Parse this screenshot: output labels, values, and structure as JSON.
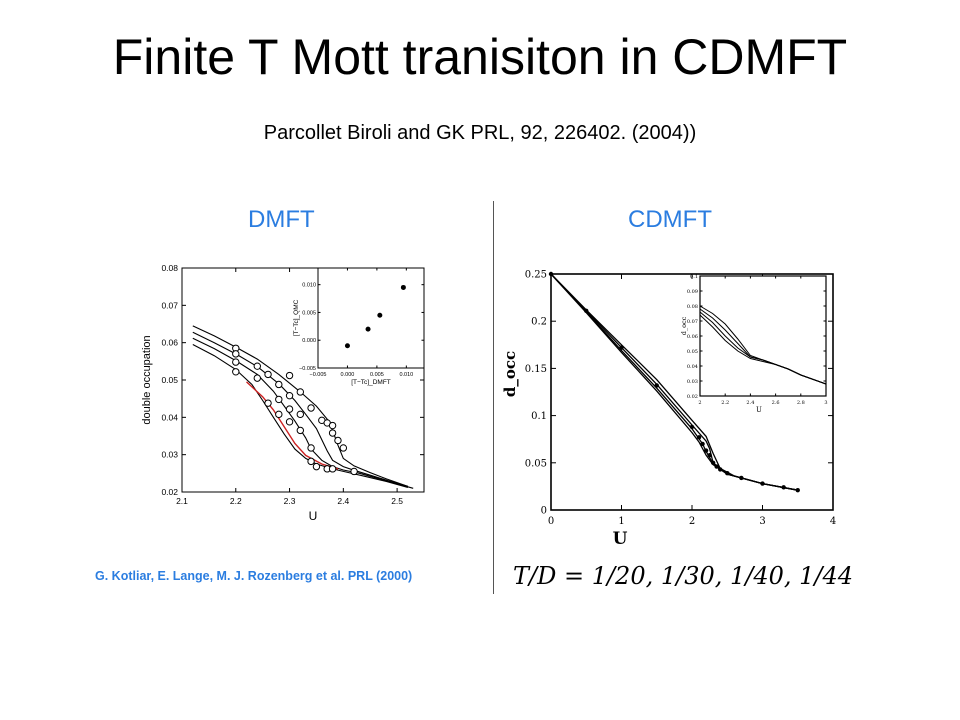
{
  "slide": {
    "title": "Finite T Mott tranisiton in CDMFT",
    "subtitle": "Parcollet Biroli and GK PRL,  92,  226402. (2004))",
    "dmft_label": "DMFT",
    "cdmft_label": "CDMFT",
    "credit": "G. Kotliar, E. Lange, M. J. Rozenberg et al. PRL (2000)",
    "formula": "T/D = 1/20, 1/30, 1/40, 1/44",
    "colors": {
      "accent": "#2b7de0",
      "fit_line": "#cc2222",
      "ink": "#000000"
    }
  },
  "chart_data": [
    {
      "type": "line",
      "xlabel": "U",
      "ylabel": "double occupation",
      "xlim": [
        2.1,
        2.55
      ],
      "ylim": [
        0.02,
        0.08
      ],
      "xticks": [
        2.1,
        2.2,
        2.3,
        2.4,
        2.5
      ],
      "xtick_labels": [
        "2.1",
        "2.2",
        "2.3",
        "2.4",
        "2.5"
      ],
      "yticks": [
        0.02,
        0.03,
        0.04,
        0.05,
        0.06,
        0.07,
        0.08
      ],
      "ytick_labels": [
        "0.02",
        "0.03",
        "0.04",
        "0.05",
        "0.06",
        "0.07",
        "0.08"
      ],
      "series": [
        {
          "x": [
            2.12,
            2.16,
            2.2,
            2.24,
            2.28,
            2.32,
            2.35,
            2.37,
            2.38,
            2.39,
            2.4,
            2.42,
            2.45,
            2.48,
            2.52
          ],
          "y": [
            0.0645,
            0.0618,
            0.0588,
            0.0556,
            0.0515,
            0.0468,
            0.043,
            0.0395,
            0.0365,
            0.0325,
            0.029,
            0.027,
            0.0252,
            0.0235,
            0.0215
          ]
        },
        {
          "x": [
            2.12,
            2.16,
            2.2,
            2.24,
            2.28,
            2.31,
            2.33,
            2.35,
            2.36,
            2.37,
            2.38,
            2.4,
            2.42,
            2.45,
            2.48,
            2.52
          ],
          "y": [
            0.0628,
            0.06,
            0.057,
            0.0536,
            0.049,
            0.0445,
            0.0408,
            0.037,
            0.034,
            0.031,
            0.0285,
            0.0268,
            0.0258,
            0.0245,
            0.0232,
            0.0215
          ]
        },
        {
          "x": [
            2.12,
            2.16,
            2.2,
            2.24,
            2.27,
            2.29,
            2.31,
            2.33,
            2.34,
            2.36,
            2.38,
            2.4,
            2.43,
            2.46,
            2.5,
            2.53
          ],
          "y": [
            0.0612,
            0.0584,
            0.0552,
            0.0515,
            0.047,
            0.043,
            0.039,
            0.0345,
            0.0315,
            0.0285,
            0.0268,
            0.0259,
            0.025,
            0.0238,
            0.0222,
            0.021
          ]
        },
        {
          "x": [
            2.12,
            2.16,
            2.2,
            2.23,
            2.25,
            2.27,
            2.29,
            2.31,
            2.33,
            2.35,
            2.38,
            2.41,
            2.44,
            2.48,
            2.52
          ],
          "y": [
            0.0595,
            0.0565,
            0.0528,
            0.0488,
            0.0445,
            0.04,
            0.0355,
            0.0315,
            0.029,
            0.0275,
            0.0262,
            0.0252,
            0.0242,
            0.0228,
            0.0212
          ]
        },
        {
          "name": "fit",
          "color": "#cc2222",
          "x": [
            2.22,
            2.25,
            2.27,
            2.29,
            2.31,
            2.33,
            2.36,
            2.39
          ],
          "y": [
            0.0495,
            0.0455,
            0.042,
            0.0375,
            0.033,
            0.0298,
            0.0275,
            0.0262
          ]
        }
      ],
      "points": {
        "x": [
          2.2,
          2.2,
          2.2,
          2.2,
          2.24,
          2.24,
          2.26,
          2.26,
          2.28,
          2.28,
          2.28,
          2.3,
          2.3,
          2.3,
          2.3,
          2.32,
          2.32,
          2.32,
          2.34,
          2.34,
          2.34,
          2.35,
          2.36,
          2.37,
          2.37,
          2.38,
          2.38,
          2.38,
          2.39,
          2.4,
          2.42
        ],
        "y": [
          0.0585,
          0.057,
          0.0548,
          0.0522,
          0.0537,
          0.0505,
          0.0515,
          0.0438,
          0.0488,
          0.0448,
          0.0408,
          0.0512,
          0.0458,
          0.0422,
          0.0388,
          0.0468,
          0.0408,
          0.0365,
          0.0425,
          0.0318,
          0.0282,
          0.0268,
          0.0392,
          0.0385,
          0.0262,
          0.0378,
          0.0358,
          0.0262,
          0.0338,
          0.0318,
          0.0255
        ]
      },
      "inset": {
        "type": "scatter",
        "xlabel": "[T−Tc]_DMFT",
        "ylabel": "[T−Tc]_QMC",
        "xlim": [
          -0.005,
          0.013
        ],
        "ylim": [
          -0.005,
          0.013
        ],
        "xticks": [
          -0.005,
          0.0,
          0.005,
          0.01
        ],
        "xtick_labels": [
          "−0.005",
          "0.000",
          "0.005",
          "0.010"
        ],
        "yticks": [
          -0.005,
          0.0,
          0.005,
          0.01
        ],
        "ytick_labels": [
          "−0.005",
          "0.000",
          "0.005",
          "0.010"
        ],
        "x": [
          0.0,
          0.0035,
          0.0055,
          0.0095
        ],
        "y": [
          -0.001,
          0.002,
          0.0045,
          0.0095
        ]
      }
    },
    {
      "type": "line",
      "xlabel": "U",
      "ylabel": "d_occ",
      "xlim": [
        0,
        4
      ],
      "ylim": [
        0,
        0.25
      ],
      "xticks": [
        0,
        1,
        2,
        3,
        4
      ],
      "xtick_labels": [
        "0",
        "1",
        "2",
        "3",
        "4"
      ],
      "yticks": [
        0,
        0.05,
        0.1,
        0.15,
        0.2,
        0.25
      ],
      "ytick_labels": [
        "0",
        "0.05",
        "0.1",
        "0.15",
        "0.2",
        "0.25"
      ],
      "series": [
        {
          "x": [
            0,
            0.5,
            1,
            1.5,
            2,
            2.2,
            2.3,
            2.4,
            2.6,
            3.0,
            3.5
          ],
          "y": [
            0.25,
            0.212,
            0.175,
            0.138,
            0.095,
            0.078,
            0.06,
            0.044,
            0.036,
            0.028,
            0.021
          ]
        },
        {
          "x": [
            0,
            0.5,
            1,
            1.5,
            2,
            2.2,
            2.25,
            2.3,
            2.5,
            3.0,
            3.5
          ],
          "y": [
            0.25,
            0.211,
            0.172,
            0.133,
            0.09,
            0.073,
            0.065,
            0.05,
            0.038,
            0.028,
            0.021
          ]
        },
        {
          "x": [
            0,
            0.5,
            1,
            1.5,
            2,
            2.15,
            2.2,
            2.3,
            2.5,
            3.0,
            3.5
          ],
          "y": [
            0.25,
            0.21,
            0.169,
            0.129,
            0.086,
            0.07,
            0.062,
            0.049,
            0.038,
            0.028,
            0.021
          ]
        },
        {
          "x": [
            0,
            0.5,
            1,
            1.5,
            2,
            2.1,
            2.2,
            2.3,
            2.5,
            3.0,
            3.5
          ],
          "y": [
            0.25,
            0.209,
            0.167,
            0.126,
            0.082,
            0.072,
            0.058,
            0.048,
            0.038,
            0.028,
            0.021
          ]
        }
      ],
      "points": {
        "x": [
          0,
          0.5,
          1.0,
          1.5,
          2.0,
          2.1,
          2.15,
          2.2,
          2.25,
          2.3,
          2.35,
          2.4,
          2.5,
          2.7,
          3.0,
          3.3,
          3.5
        ],
        "y": [
          0.25,
          0.211,
          0.172,
          0.132,
          0.088,
          0.077,
          0.07,
          0.063,
          0.058,
          0.05,
          0.046,
          0.043,
          0.039,
          0.034,
          0.028,
          0.024,
          0.021
        ]
      },
      "inset": {
        "type": "line",
        "xlabel": "U",
        "ylabel": "d_occ",
        "xlim": [
          2.0,
          3.0
        ],
        "ylim": [
          0.02,
          0.1
        ],
        "xticks": [
          2.0,
          2.2,
          2.4,
          2.6,
          2.8,
          3.0
        ],
        "xtick_labels": [
          "2",
          "2.2",
          "2.4",
          "2.6",
          "2.8",
          "3"
        ],
        "yticks": [
          0.02,
          0.03,
          0.04,
          0.05,
          0.06,
          0.07,
          0.08,
          0.09,
          0.1
        ],
        "ytick_labels": [
          "0.02",
          "0.03",
          "0.04",
          "0.05",
          "0.06",
          "0.07",
          "0.08",
          "0.09",
          "0.1"
        ],
        "series": [
          {
            "x": [
              2.0,
              2.1,
              2.2,
              2.3,
              2.4,
              2.5,
              2.6,
              2.7,
              2.8,
              2.9,
              3.0
            ],
            "y": [
              0.08,
              0.075,
              0.068,
              0.058,
              0.047,
              0.044,
              0.041,
              0.038,
              0.034,
              0.031,
              0.028
            ]
          },
          {
            "x": [
              2.0,
              2.1,
              2.2,
              2.3,
              2.4,
              2.5,
              2.6,
              2.7,
              2.8,
              2.9,
              3.0
            ],
            "y": [
              0.078,
              0.072,
              0.064,
              0.055,
              0.046,
              0.044,
              0.041,
              0.038,
              0.034,
              0.031,
              0.028
            ]
          },
          {
            "x": [
              2.0,
              2.1,
              2.2,
              2.3,
              2.4,
              2.5,
              2.6,
              2.7,
              2.8,
              2.9,
              3.0
            ],
            "y": [
              0.076,
              0.069,
              0.06,
              0.052,
              0.046,
              0.044,
              0.041,
              0.038,
              0.034,
              0.031,
              0.028
            ]
          },
          {
            "x": [
              2.0,
              2.1,
              2.2,
              2.3,
              2.4,
              2.5,
              2.6,
              2.7,
              2.8,
              2.9,
              3.0
            ],
            "y": [
              0.074,
              0.066,
              0.057,
              0.05,
              0.045,
              0.043,
              0.041,
              0.038,
              0.034,
              0.031,
              0.028
            ]
          }
        ]
      }
    }
  ]
}
